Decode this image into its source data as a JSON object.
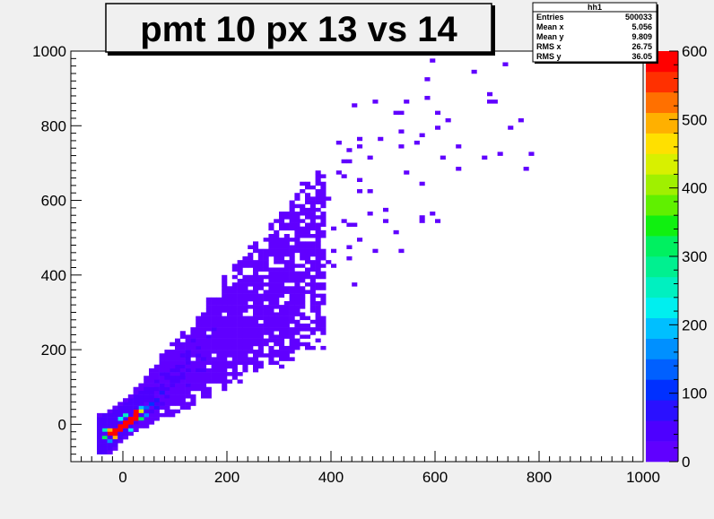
{
  "chart_data": {
    "type": "heatmap",
    "title": "pmt 10 px 13 vs 14",
    "xlabel": "",
    "ylabel": "",
    "xlim": [
      -100,
      1000
    ],
    "ylim": [
      -100,
      1000
    ],
    "zlim": [
      0,
      600
    ],
    "x_ticks": [
      "0",
      "200",
      "400",
      "600",
      "800",
      "1000"
    ],
    "y_ticks": [
      "0",
      "200",
      "400",
      "600",
      "800",
      "1000"
    ],
    "z_ticks": [
      "0",
      "100",
      "200",
      "300",
      "400",
      "500",
      "600"
    ],
    "bin_size": 10,
    "grid": false,
    "palette": [
      "#6000ff",
      "#4d00ff",
      "#2a10ff",
      "#0030ff",
      "#0060ff",
      "#0090ff",
      "#00bfff",
      "#00efef",
      "#00f0c0",
      "#00f090",
      "#00f060",
      "#10f010",
      "#60f000",
      "#a0f000",
      "#d8f000",
      "#ffe000",
      "#ffb000",
      "#ff7000",
      "#ff3000",
      "#ff0000"
    ],
    "stats": {
      "name": "hh1",
      "rows": [
        {
          "label": "Entries",
          "value": "500033"
        },
        {
          "label": "Mean x",
          "value": "5.056"
        },
        {
          "label": "Mean y",
          "value": "9.809"
        },
        {
          "label": "RMS x",
          "value": "26.75"
        },
        {
          "label": "RMS y",
          "value": "36.05"
        }
      ]
    },
    "core_bins": [
      {
        "x": -30,
        "y": -30,
        "z": 600
      },
      {
        "x": -20,
        "y": -30,
        "z": 600
      },
      {
        "x": -20,
        "y": -20,
        "z": 600
      },
      {
        "x": -10,
        "y": -20,
        "z": 600
      },
      {
        "x": -10,
        "y": -10,
        "z": 600
      },
      {
        "x": 0,
        "y": -10,
        "z": 600
      },
      {
        "x": 0,
        "y": 0,
        "z": 600
      },
      {
        "x": 10,
        "y": 0,
        "z": 600
      },
      {
        "x": 10,
        "y": 10,
        "z": 600
      },
      {
        "x": 20,
        "y": 10,
        "z": 600
      },
      {
        "x": 20,
        "y": 20,
        "z": 600
      },
      {
        "x": 20,
        "y": 30,
        "z": 600
      },
      {
        "x": -20,
        "y": -40,
        "z": 500
      },
      {
        "x": -30,
        "y": -20,
        "z": 480
      },
      {
        "x": 30,
        "y": 30,
        "z": 420
      },
      {
        "x": -40,
        "y": -40,
        "z": 300
      },
      {
        "x": -40,
        "y": -20,
        "z": 260
      },
      {
        "x": 30,
        "y": 10,
        "z": 300
      },
      {
        "x": 0,
        "y": 20,
        "z": 250
      },
      {
        "x": -10,
        "y": 10,
        "z": 220
      },
      {
        "x": 10,
        "y": -20,
        "z": 230
      },
      {
        "x": 30,
        "y": 40,
        "z": 200
      },
      {
        "x": 40,
        "y": 20,
        "z": 160
      },
      {
        "x": -30,
        "y": -50,
        "z": 150
      },
      {
        "x": 40,
        "y": 40,
        "z": 120
      },
      {
        "x": 50,
        "y": 50,
        "z": 90
      },
      {
        "x": 60,
        "y": 60,
        "z": 70
      },
      {
        "x": 70,
        "y": 80,
        "z": 60
      },
      {
        "x": 80,
        "y": 90,
        "z": 50
      },
      {
        "x": 90,
        "y": 100,
        "z": 40
      },
      {
        "x": 100,
        "y": 110,
        "z": 35
      },
      {
        "x": 60,
        "y": 40,
        "z": 60
      },
      {
        "x": 40,
        "y": 60,
        "z": 55
      },
      {
        "x": 80,
        "y": 120,
        "z": 40
      },
      {
        "x": 100,
        "y": 150,
        "z": 30
      },
      {
        "x": 120,
        "y": 160,
        "z": 30
      },
      {
        "x": 110,
        "y": 130,
        "z": 30
      },
      {
        "x": 70,
        "y": 50,
        "z": 45
      },
      {
        "x": 50,
        "y": 30,
        "z": 50
      }
    ],
    "density_model": {
      "points": 4200,
      "slope_center": 1.0,
      "slope_spread": 0.7,
      "x_range": [
        -50,
        390
      ],
      "outliers": 180,
      "outlier_x_range": [
        150,
        790
      ],
      "outlier_y_range": [
        250,
        980
      ]
    }
  }
}
